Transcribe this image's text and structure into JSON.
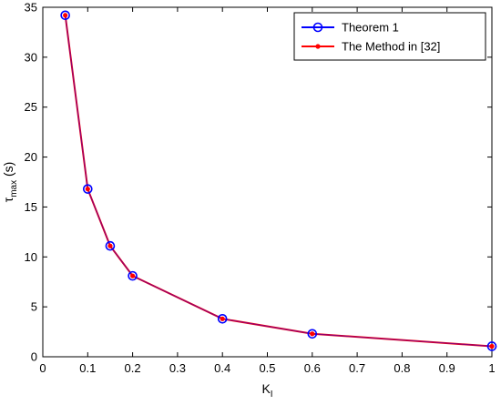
{
  "chart_data": {
    "type": "line",
    "title": "",
    "xlabel": {
      "main": "K",
      "sub": "I"
    },
    "ylabel": {
      "main": "τ",
      "sub": "max",
      "suffix": " (s)"
    },
    "xlim": [
      0,
      1
    ],
    "ylim": [
      0,
      35
    ],
    "xticks": [
      "0",
      "0.1",
      "0.2",
      "0.3",
      "0.4",
      "0.5",
      "0.6",
      "0.7",
      "0.8",
      "0.9",
      "1"
    ],
    "yticks": [
      "0",
      "5",
      "10",
      "15",
      "20",
      "25",
      "30",
      "35"
    ],
    "grid": false,
    "legend_position": "top-right",
    "series": [
      {
        "name": "Theorem 1",
        "color": "#0000ff",
        "marker": "open-circle",
        "x": [
          0.05,
          0.1,
          0.15,
          0.2,
          0.4,
          0.6,
          1.0
        ],
        "y": [
          34.2,
          16.8,
          11.1,
          8.1,
          3.8,
          2.3,
          1.05
        ]
      },
      {
        "name": "The Method in [32]",
        "color": "#ff0000",
        "marker": "filled-dot",
        "x": [
          0.05,
          0.1,
          0.15,
          0.2,
          0.4,
          0.6,
          1.0
        ],
        "y": [
          34.2,
          16.8,
          11.1,
          8.1,
          3.8,
          2.3,
          1.05
        ]
      }
    ]
  }
}
